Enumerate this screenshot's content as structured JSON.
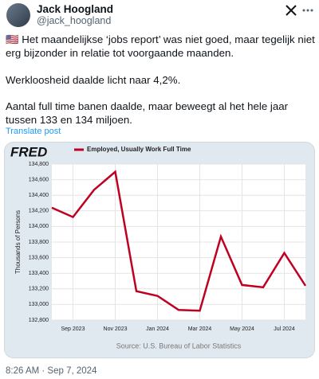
{
  "post": {
    "name": "Jack Hoogland",
    "handle": "@jack_hoogland",
    "paragraphs": [
      "🇺🇸 Het maandelijkse ‘jobs report’ was niet goed, maar tegelijk niet erg bijzonder in relatie tot voorgaande maanden.",
      "Werkloosheid daalde licht naar 4,2%.",
      "Aantal full time banen daalde, maar beweegt al het hele jaar tussen 133 en 134 miljoen."
    ],
    "translate": "Translate post",
    "timestamp": "8:26 AM · Sep 7, 2024"
  },
  "chart_data": {
    "type": "line",
    "logo": "FRED",
    "y_label": "Thousands of Persons",
    "source": "Source: U.S. Bureau of Labor Statistics",
    "categories": [
      null,
      "Sep 2023",
      null,
      "Nov 2023",
      null,
      "Jan 2024",
      null,
      "Mar 2024",
      null,
      "May 2024",
      null,
      "Jul 2024",
      null
    ],
    "series": [
      {
        "name": "Employed, Usually Work Full Time",
        "color": "#c00021",
        "values": [
          134240,
          134120,
          134470,
          134700,
          133170,
          133110,
          132930,
          132920,
          133870,
          133250,
          133220,
          133660,
          133240
        ]
      }
    ],
    "ylim": [
      132800,
      134800
    ],
    "yticks": [
      {
        "value": 132800,
        "label": "132,800"
      },
      {
        "value": 133000,
        "label": "133,000"
      },
      {
        "value": 133200,
        "label": "133,200"
      },
      {
        "value": 133400,
        "label": "133,400"
      },
      {
        "value": 133600,
        "label": "133,600"
      },
      {
        "value": 133800,
        "label": "133,800"
      },
      {
        "value": 134000,
        "label": "134,000"
      },
      {
        "value": 134200,
        "label": "134,200"
      },
      {
        "value": 134400,
        "label": "134,400"
      },
      {
        "value": 134600,
        "label": "134,600"
      },
      {
        "value": 134800,
        "label": "134,800"
      }
    ],
    "grid": true
  }
}
